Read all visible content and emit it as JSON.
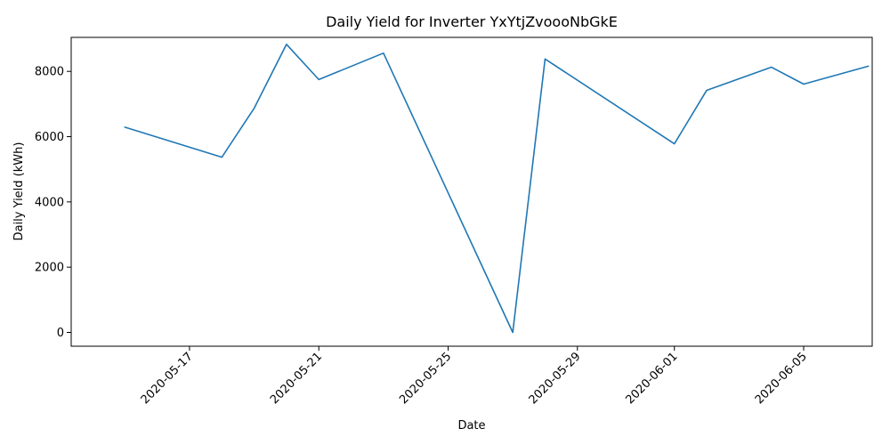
{
  "chart_data": {
    "type": "line",
    "title": "Daily Yield for Inverter YxYtjZvoooNbGkE",
    "xlabel": "Date",
    "ylabel": "Daily Yield (kWh)",
    "x_ticks": [
      "2020-05-17",
      "2020-05-21",
      "2020-05-25",
      "2020-05-29",
      "2020-06-01",
      "2020-06-05"
    ],
    "y_ticks": [
      0,
      2000,
      4000,
      6000,
      8000
    ],
    "xlim": [
      "2020-05-14",
      "2020-06-07"
    ],
    "ylim": [
      0,
      9000
    ],
    "grid": false,
    "series": [
      {
        "color": "#1f77b4",
        "points": [
          {
            "x": "2020-05-15",
            "y": 6290
          },
          {
            "x": "2020-05-18",
            "y": 5370
          },
          {
            "x": "2020-05-19",
            "y": 6870
          },
          {
            "x": "2020-05-20",
            "y": 8830
          },
          {
            "x": "2020-05-21",
            "y": 7750
          },
          {
            "x": "2020-05-23",
            "y": 8560
          },
          {
            "x": "2020-05-27",
            "y": 0
          },
          {
            "x": "2020-05-28",
            "y": 8380
          },
          {
            "x": "2020-06-01",
            "y": 5780
          },
          {
            "x": "2020-06-02",
            "y": 7420
          },
          {
            "x": "2020-06-04",
            "y": 8130
          },
          {
            "x": "2020-06-05",
            "y": 7610
          },
          {
            "x": "2020-06-07",
            "y": 8160
          }
        ]
      }
    ]
  }
}
